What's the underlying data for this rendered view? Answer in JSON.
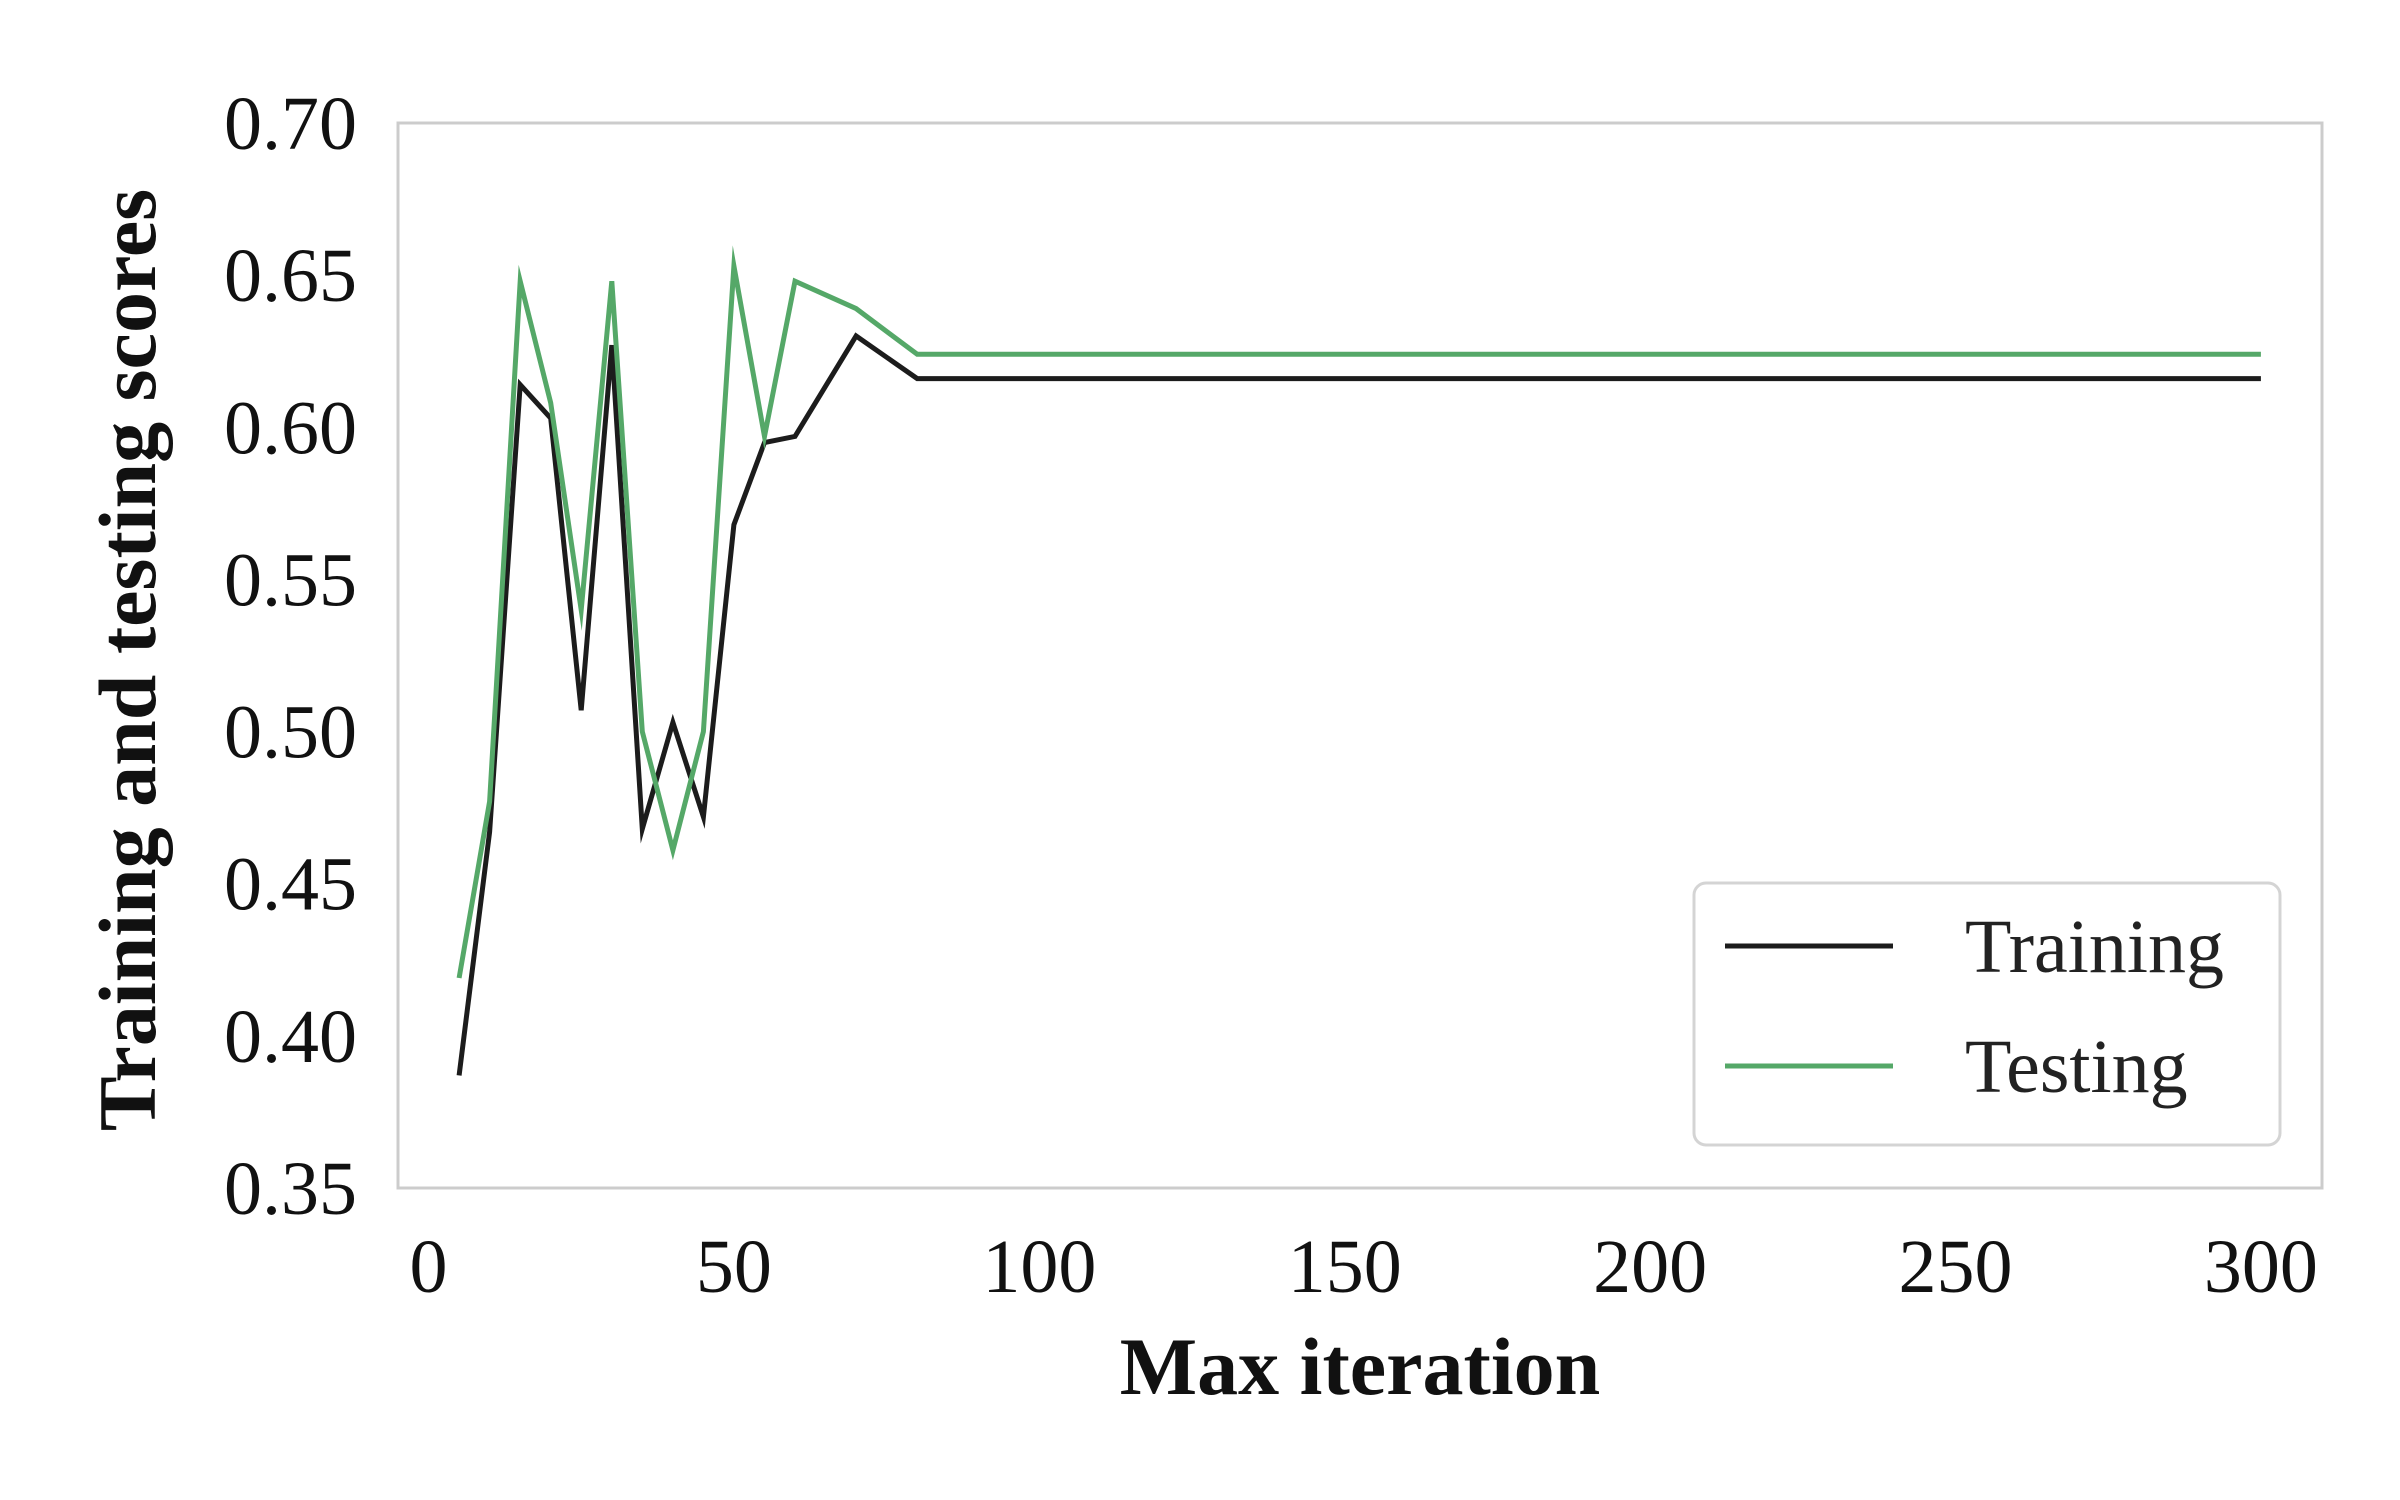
{
  "chart_data": {
    "type": "line",
    "title": "",
    "xlabel": "Max iteration",
    "ylabel": "Training and testing scores",
    "xlim": [
      -5,
      310
    ],
    "ylim": [
      0.35,
      0.7
    ],
    "x_ticks": [
      0,
      50,
      100,
      150,
      200,
      250,
      300
    ],
    "x_tick_labels": [
      "0",
      "50",
      "100",
      "150",
      "200",
      "250",
      "300"
    ],
    "y_ticks": [
      0.35,
      0.4,
      0.45,
      0.5,
      0.55,
      0.6,
      0.65,
      0.7
    ],
    "y_tick_labels": [
      "0.35",
      "0.40",
      "0.45",
      "0.50",
      "0.55",
      "0.60",
      "0.65",
      "0.70"
    ],
    "grid": false,
    "legend_position": "bottom-right",
    "series": [
      {
        "name": "Training",
        "color": "#1c1c1c",
        "x": [
          5,
          10,
          15,
          20,
          25,
          30,
          35,
          40,
          45,
          50,
          55,
          60,
          70,
          80,
          90,
          100,
          150,
          200,
          250,
          300
        ],
        "y": [
          0.387,
          0.467,
          0.614,
          0.603,
          0.507,
          0.627,
          0.468,
          0.503,
          0.472,
          0.568,
          0.595,
          0.597,
          0.63,
          0.616,
          0.616,
          0.616,
          0.616,
          0.616,
          0.616,
          0.616
        ]
      },
      {
        "name": "Testing",
        "color": "#55a868",
        "x": [
          5,
          10,
          15,
          20,
          25,
          30,
          35,
          40,
          45,
          50,
          55,
          60,
          70,
          80,
          90,
          100,
          150,
          200,
          250,
          300
        ],
        "y": [
          0.419,
          0.477,
          0.648,
          0.608,
          0.54,
          0.648,
          0.5,
          0.461,
          0.5,
          0.653,
          0.597,
          0.648,
          0.639,
          0.624,
          0.624,
          0.624,
          0.624,
          0.624,
          0.624,
          0.624
        ]
      }
    ]
  }
}
